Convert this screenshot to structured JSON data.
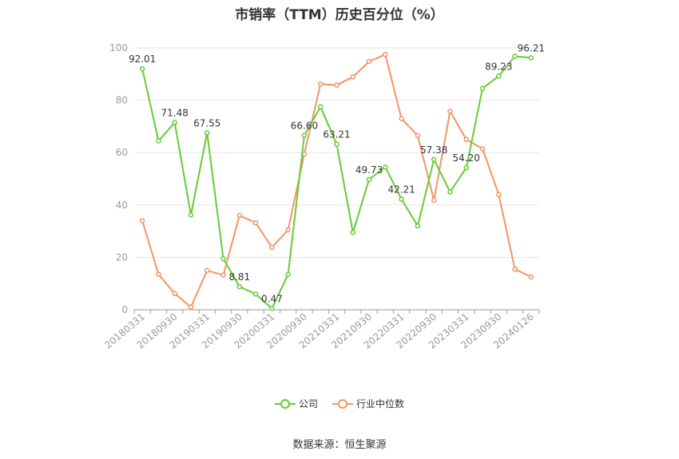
{
  "title": "市销率（TTM）历史百分位（%）",
  "source": "数据来源：恒生聚源",
  "colors": {
    "company": "#66cc33",
    "industry": "#f39466",
    "grid": "#e6e6e6",
    "axis": "#999999"
  },
  "chart_data": {
    "type": "line",
    "ylim": [
      0,
      100
    ],
    "yticks": [
      0,
      20,
      40,
      60,
      80,
      100
    ],
    "grid": true,
    "legend_position": "bottom",
    "x_tick_labels": [
      "20180331",
      "20180930",
      "20190331",
      "20190930",
      "20200331",
      "20200930",
      "20210331",
      "20210930",
      "20220331",
      "20220930",
      "20230331",
      "20230930",
      "20240126"
    ],
    "x": [
      "20180331",
      "20180630",
      "20180930",
      "20181231",
      "20190331",
      "20190630",
      "20190930",
      "20191231",
      "20200331",
      "20200630",
      "20200930",
      "20201231",
      "20210331",
      "20210630",
      "20210930",
      "20211231",
      "20220331",
      "20220630",
      "20220930",
      "20221231",
      "20230331",
      "20230630",
      "20230930",
      "20231231",
      "20240126"
    ],
    "series": [
      {
        "name": "公司",
        "values": [
          92.01,
          64.5,
          71.48,
          36.2,
          67.55,
          19.5,
          8.81,
          6.0,
          0.47,
          13.5,
          66.6,
          77.5,
          63.21,
          29.5,
          49.73,
          54.5,
          42.21,
          32.0,
          57.38,
          45.0,
          54.2,
          84.5,
          89.23,
          96.8,
          96.21
        ],
        "labels": [
          "92.01",
          "",
          "71.48",
          "",
          "67.55",
          "",
          "8.81",
          "",
          "0.47",
          "",
          "66.60",
          "",
          "63.21",
          "",
          "49.73",
          "",
          "42.21",
          "",
          "57.38",
          "",
          "54.20",
          "",
          "89.23",
          "",
          "96.21"
        ]
      },
      {
        "name": "行业中位数",
        "values": [
          34.0,
          13.5,
          6.2,
          1.0,
          15.0,
          13.2,
          36.0,
          33.2,
          23.8,
          30.5,
          59.5,
          86.2,
          85.8,
          88.9,
          94.8,
          97.5,
          73.0,
          66.5,
          41.8,
          75.8,
          65.0,
          61.5,
          44.0,
          15.5,
          12.5
        ],
        "labels": []
      }
    ]
  }
}
